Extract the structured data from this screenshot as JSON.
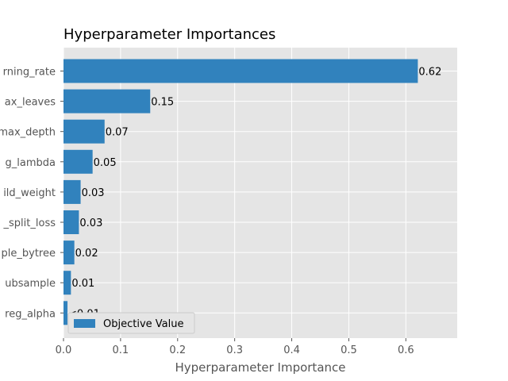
{
  "chart_data": {
    "type": "bar",
    "orientation": "horizontal",
    "title": "Hyperparameter Importances",
    "xlabel": "Hyperparameter Importance",
    "ylabel": "",
    "xlim": [
      0,
      0.69
    ],
    "x_ticks": [
      0.0,
      0.1,
      0.2,
      0.3,
      0.4,
      0.5,
      0.6
    ],
    "x_tick_labels": [
      "0.0",
      "0.1",
      "0.2",
      "0.3",
      "0.4",
      "0.5",
      "0.6"
    ],
    "grid": true,
    "legend_position": "lower-left",
    "categories": [
      "rning_rate",
      "ax_leaves",
      "max_depth",
      "g_lambda",
      "ild_weight",
      "_split_loss",
      "ple_bytree",
      "ubsample",
      "reg_alpha"
    ],
    "series": [
      {
        "name": "Objective Value",
        "color": "#3182bd",
        "values": [
          0.621,
          0.152,
          0.072,
          0.051,
          0.03,
          0.027,
          0.019,
          0.013,
          0.007
        ],
        "labels": [
          "0.62",
          "0.15",
          "0.07",
          "0.05",
          "0.03",
          "0.03",
          "0.02",
          "0.01",
          "<0.01"
        ]
      }
    ],
    "plot_background": "#e5e5e5",
    "grid_color": "#ffffff"
  }
}
